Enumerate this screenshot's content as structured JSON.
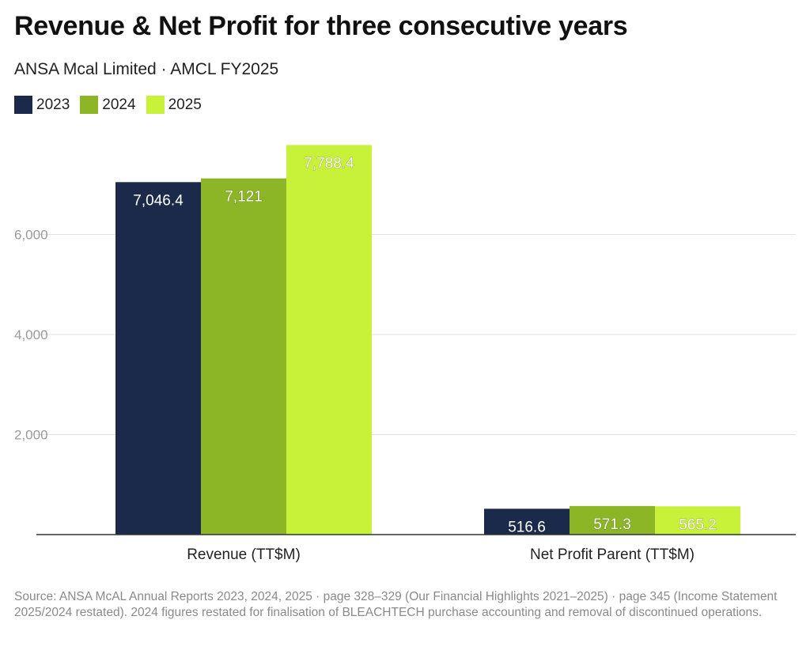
{
  "chart_data": {
    "type": "bar",
    "title": "Revenue & Net Profit for three consecutive years",
    "subtitle": "ANSA Mcal Limited · AMCL FY2025",
    "categories": [
      "Revenue (TT$M)",
      "Net Profit Parent (TT$M)"
    ],
    "series": [
      {
        "name": "2023",
        "color": "#1b2a4a",
        "values": [
          7046.4,
          516.6
        ],
        "labels": [
          "7,046.4",
          "516.6"
        ]
      },
      {
        "name": "2024",
        "color": "#8db626",
        "values": [
          7121,
          571.3
        ],
        "labels": [
          "7,121",
          "571.3"
        ]
      },
      {
        "name": "2025",
        "color": "#c8f23a",
        "values": [
          7788.4,
          565.2
        ],
        "labels": [
          "7,788.4",
          "565.2"
        ]
      }
    ],
    "yticks": [
      2000,
      4000,
      6000
    ],
    "ytick_labels": [
      "2,000",
      "4,000",
      "6,000"
    ],
    "ylim": [
      0,
      8000
    ],
    "grid": true,
    "legend_position": "top-left",
    "source": "Source: ANSA McAL Annual Reports 2023, 2024, 2025 · page 328–329 (Our Financial Highlights 2021–2025) · page 345 (Income Statement 2025/2024 restated). 2024 figures restated for finalisation of BLEACHTECH purchase accounting and removal of discontinued operations."
  }
}
